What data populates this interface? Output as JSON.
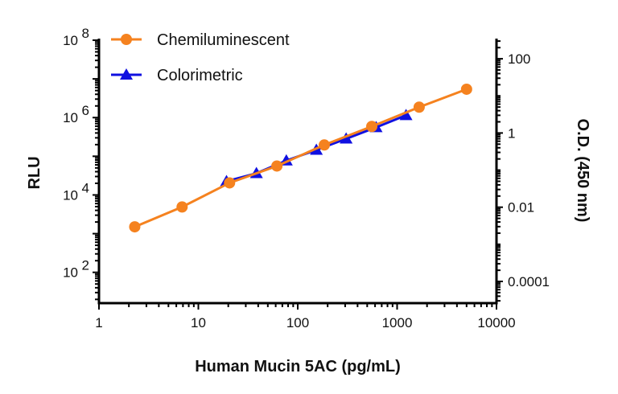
{
  "chart_data": {
    "type": "line",
    "title": "",
    "xlabel": "Human Mucin 5AC (pg/mL)",
    "ylabel": "RLU",
    "y2label": "O.D. (450 nm)",
    "xscale": "log",
    "yscale": "log",
    "y2scale": "log",
    "xlim": [
      1,
      10000
    ],
    "ylim": [
      16,
      110000000
    ],
    "y2lim": [
      2.6e-05,
      350
    ],
    "xticks": [
      "1",
      "10",
      "100",
      "1000",
      "10000"
    ],
    "yticks": [
      {
        "base": "10",
        "exp": "2",
        "v": 100
      },
      {
        "base": "10",
        "exp": "4",
        "v": 10000
      },
      {
        "base": "10",
        "exp": "6",
        "v": 1000000
      },
      {
        "base": "10",
        "exp": "8",
        "v": 100000000
      }
    ],
    "y2ticks": [
      "0.0001",
      "0.01",
      "1",
      "100"
    ],
    "grid": false,
    "legend_position": "top-left",
    "series": [
      {
        "name": "Chemiluminescent",
        "axis": "left",
        "color": "#F5821F",
        "marker": "circle",
        "x": [
          2.29,
          6.86,
          20.6,
          61.7,
          185,
          556,
          1667,
          5000
        ],
        "y": [
          1500,
          4900,
          20500,
          56000,
          196000,
          590000,
          1860000,
          5400000
        ]
      },
      {
        "name": "Colorimetric",
        "axis": "right",
        "color": "#1010E0",
        "marker": "triangle",
        "x": [
          19.2,
          38.4,
          76.8,
          154,
          307,
          615,
          1230
        ],
        "y": [
          0.05,
          0.082,
          0.18,
          0.35,
          0.7,
          1.42,
          3.0
        ]
      }
    ]
  }
}
